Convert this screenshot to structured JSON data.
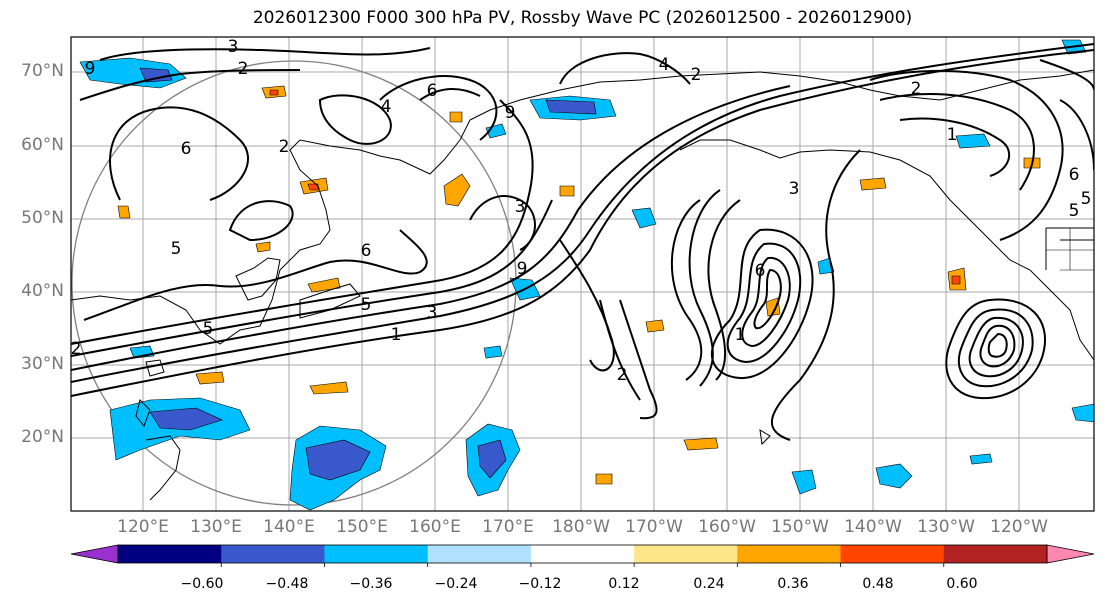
{
  "title": "2026012300 F000 300 hPa PV, Rossby Wave PC (2026012500 - 2026012900)",
  "lat_labels": [
    "70°N",
    "60°N",
    "50°N",
    "40°N",
    "30°N",
    "20°N"
  ],
  "lon_labels": [
    "120°E",
    "130°E",
    "140°E",
    "150°E",
    "160°E",
    "170°E",
    "180°W",
    "170°W",
    "160°W",
    "150°W",
    "140°W",
    "130°W",
    "120°W"
  ],
  "colorbar": {
    "ticks": [
      "−0.60",
      "−0.48",
      "−0.36",
      "−0.24",
      "−0.12",
      "0.12",
      "0.24",
      "0.36",
      "0.48",
      "0.60"
    ],
    "colors": [
      "#9b30d0",
      "#000080",
      "#3858cc",
      "#00bfff",
      "#b0e2ff",
      "#ffffff",
      "#fde68a",
      "#ffa500",
      "#ff4500",
      "#b22222",
      "#ff88b0"
    ]
  },
  "contour_labels": [
    "3",
    "2",
    "9",
    "2",
    "6",
    "4",
    "5",
    "6",
    "3",
    "2",
    "5",
    "6",
    "5",
    "9",
    "3",
    "5",
    "1",
    "1",
    "2",
    "4",
    "2",
    "1",
    "6",
    "5",
    "3",
    "2",
    "6",
    "9"
  ]
}
